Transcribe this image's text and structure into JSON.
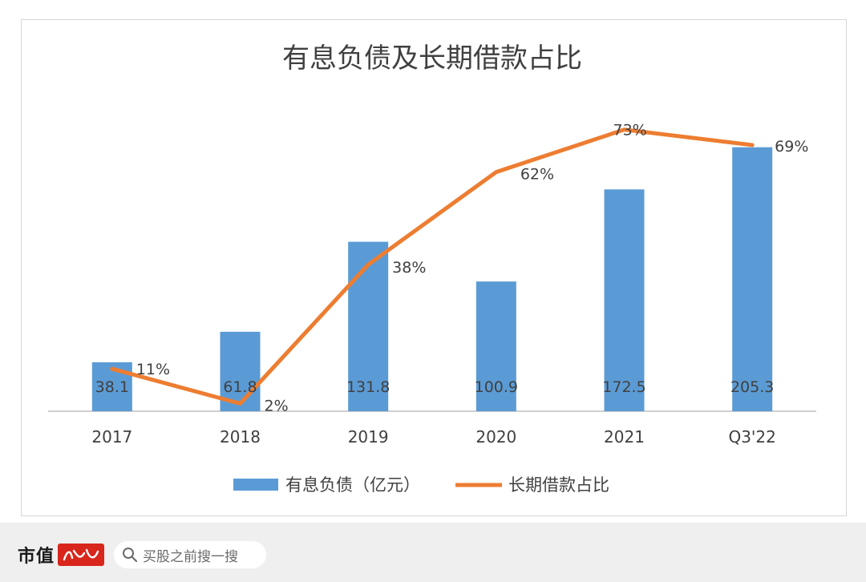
{
  "chart_data": {
    "type": "bar+line",
    "title": "有息负债及长期借款占比",
    "categories": [
      "2017",
      "2018",
      "2019",
      "2020",
      "2021",
      "Q3'22"
    ],
    "series": [
      {
        "name": "有息负债（亿元）",
        "type": "bar",
        "axis": "left",
        "values": [
          38.1,
          61.8,
          131.8,
          100.9,
          172.5,
          205.3
        ],
        "labels": [
          "38.1",
          "61.8",
          "131.8",
          "100.9",
          "172.5",
          "205.3"
        ],
        "color": "#5b9bd5"
      },
      {
        "name": "长期借款占比",
        "type": "line",
        "axis": "right",
        "values": [
          11,
          2,
          38,
          62,
          73,
          69
        ],
        "labels": [
          "11%",
          "2%",
          "38%",
          "62%",
          "73%",
          "69%"
        ],
        "color": "#ed7d31"
      }
    ],
    "left_axis_range": [
      0,
      240
    ],
    "right_axis_range": [
      0,
      80
    ],
    "grid": false,
    "legend": "bottom"
  },
  "footer": {
    "brand": "市值",
    "search_placeholder": "买股之前搜一搜"
  },
  "colors": {
    "bar": "#5b9bd5",
    "line": "#ed7d31",
    "text": "#404040",
    "axis": "#bfbfbf"
  }
}
